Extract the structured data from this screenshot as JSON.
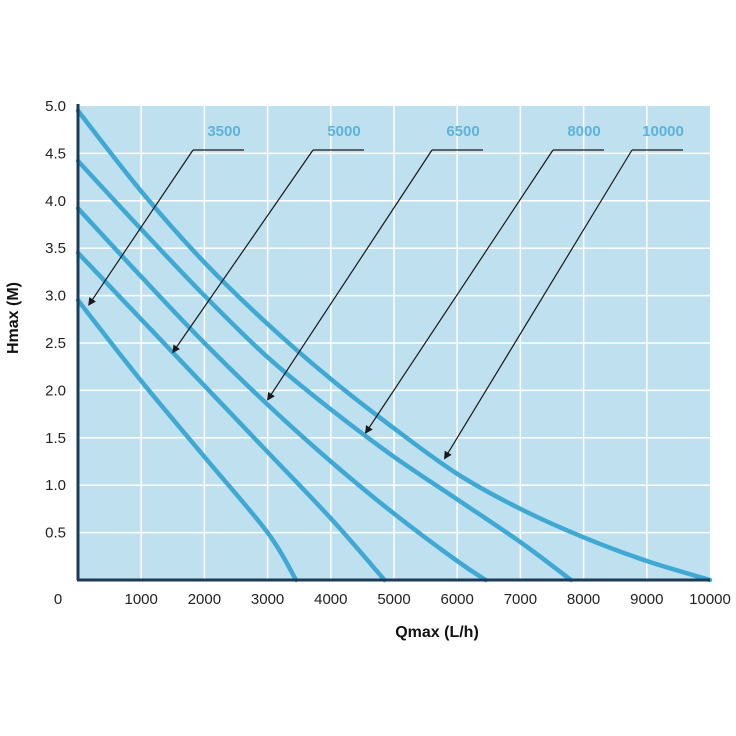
{
  "chart_data": {
    "type": "line",
    "title": "",
    "xlabel": "Qmax (L/h)",
    "ylabel": "Hmax (M)",
    "xlim": [
      0,
      10000
    ],
    "ylim": [
      0,
      5.0
    ],
    "x_ticks": [
      "0",
      "1000",
      "2000",
      "3000",
      "4000",
      "5000",
      "6000",
      "7000",
      "8000",
      "9000",
      "10000"
    ],
    "y_ticks": [
      "0.5",
      "1.0",
      "1.5",
      "2.0",
      "2.5",
      "3.0",
      "3.5",
      "4.0",
      "4.5",
      "5.0"
    ],
    "grid": true,
    "legend": "top-right, labels with leader arrows",
    "colors": {
      "plot_background": "#bfe0ef",
      "grid": "#ffffff",
      "series_line": "#3fa9d4",
      "label_text": "#5ab4dc",
      "axis": "#1c3b57"
    },
    "series": [
      {
        "name": "3500",
        "points": [
          [
            0,
            2.95
          ],
          [
            1000,
            2.1
          ],
          [
            2000,
            1.3
          ],
          [
            3000,
            0.5
          ],
          [
            3450,
            0
          ]
        ],
        "arrow_to": [
          170,
          2.9
        ]
      },
      {
        "name": "5000",
        "points": [
          [
            0,
            3.45
          ],
          [
            1000,
            2.75
          ],
          [
            2000,
            2.05
          ],
          [
            3000,
            1.35
          ],
          [
            4000,
            0.65
          ],
          [
            4850,
            0
          ]
        ],
        "arrow_to": [
          1500,
          2.4
        ]
      },
      {
        "name": "6500",
        "points": [
          [
            0,
            3.92
          ],
          [
            1000,
            3.2
          ],
          [
            2000,
            2.5
          ],
          [
            3000,
            1.85
          ],
          [
            4000,
            1.25
          ],
          [
            5000,
            0.7
          ],
          [
            6000,
            0.2
          ],
          [
            6450,
            0
          ]
        ],
        "arrow_to": [
          3000,
          1.9
        ]
      },
      {
        "name": "8000",
        "points": [
          [
            0,
            4.42
          ],
          [
            1000,
            3.7
          ],
          [
            2000,
            3.0
          ],
          [
            3000,
            2.35
          ],
          [
            4000,
            1.8
          ],
          [
            5000,
            1.3
          ],
          [
            6000,
            0.85
          ],
          [
            7000,
            0.4
          ],
          [
            7800,
            0
          ]
        ],
        "arrow_to": [
          4550,
          1.55
        ]
      },
      {
        "name": "10000",
        "points": [
          [
            0,
            4.95
          ],
          [
            1000,
            4.1
          ],
          [
            2000,
            3.35
          ],
          [
            3000,
            2.7
          ],
          [
            4000,
            2.12
          ],
          [
            5000,
            1.6
          ],
          [
            6000,
            1.12
          ],
          [
            7000,
            0.75
          ],
          [
            8000,
            0.45
          ],
          [
            9000,
            0.2
          ],
          [
            10000,
            0
          ]
        ],
        "arrow_to": [
          5800,
          1.28
        ]
      }
    ]
  }
}
